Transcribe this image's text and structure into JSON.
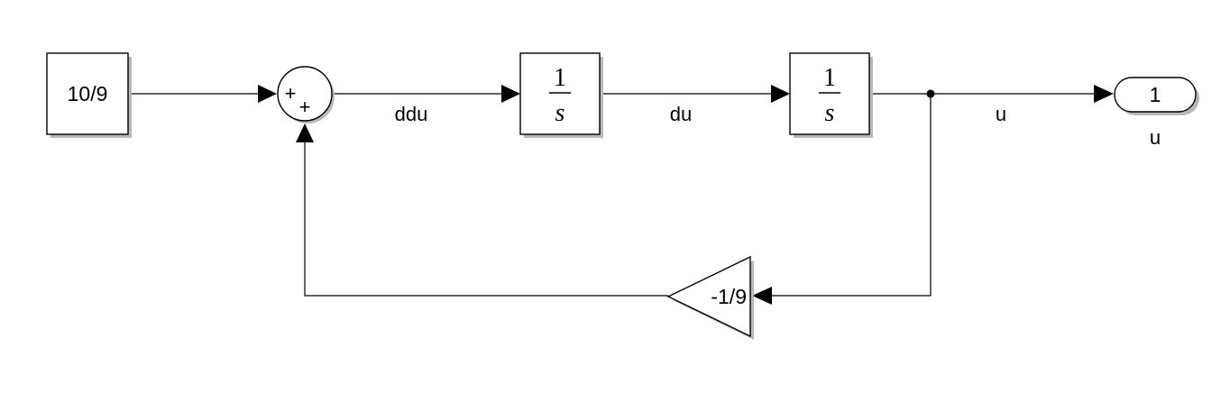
{
  "constant_block": {
    "value": "10/9"
  },
  "sum_block": {
    "signs": [
      "+",
      "+"
    ]
  },
  "integrator_1": {
    "numerator": "1",
    "denominator": "s"
  },
  "integrator_2": {
    "numerator": "1",
    "denominator": "s"
  },
  "gain_block": {
    "value": "-1/9"
  },
  "outport_block": {
    "port_number": "1",
    "name": "u"
  },
  "signals": {
    "ddu": "ddu",
    "du": "du",
    "u": "u"
  }
}
